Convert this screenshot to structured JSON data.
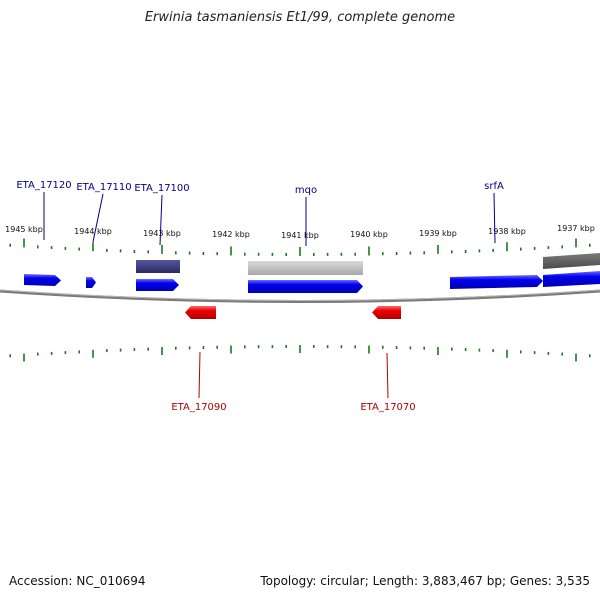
{
  "title": "Erwinia tasmaniensis Et1/99, complete genome",
  "footer": {
    "accession_label": "Accession:",
    "accession": "NC_010694",
    "topology_label": "Topology:",
    "topology": "circular",
    "length_label": "Length:",
    "length": "3,883,467 bp",
    "genes_label": "Genes:",
    "genes": "3,535"
  },
  "scale": {
    "unit": "kbp",
    "ticks_kbp": [
      1945,
      1944,
      1943,
      1942,
      1941,
      1940,
      1939,
      1938,
      1937
    ]
  },
  "gene_labels": {
    "forward": [
      "ETA_17120",
      "ETA_17110",
      "ETA_17100",
      "mqo",
      "srfA"
    ],
    "reverse": [
      "ETA_17090",
      "ETA_17070"
    ]
  },
  "colors": {
    "forward_gene": "#0000ee",
    "forward_label": "#00008b",
    "reverse_gene": "#ee0000",
    "reverse_label": "#b00000",
    "tick": "#1a7a1a",
    "backbone": "#808080",
    "feature_dark": "#3a3a7a",
    "feature_gray": "#b8b8b8",
    "feature_charcoal": "#5a5a5a"
  }
}
